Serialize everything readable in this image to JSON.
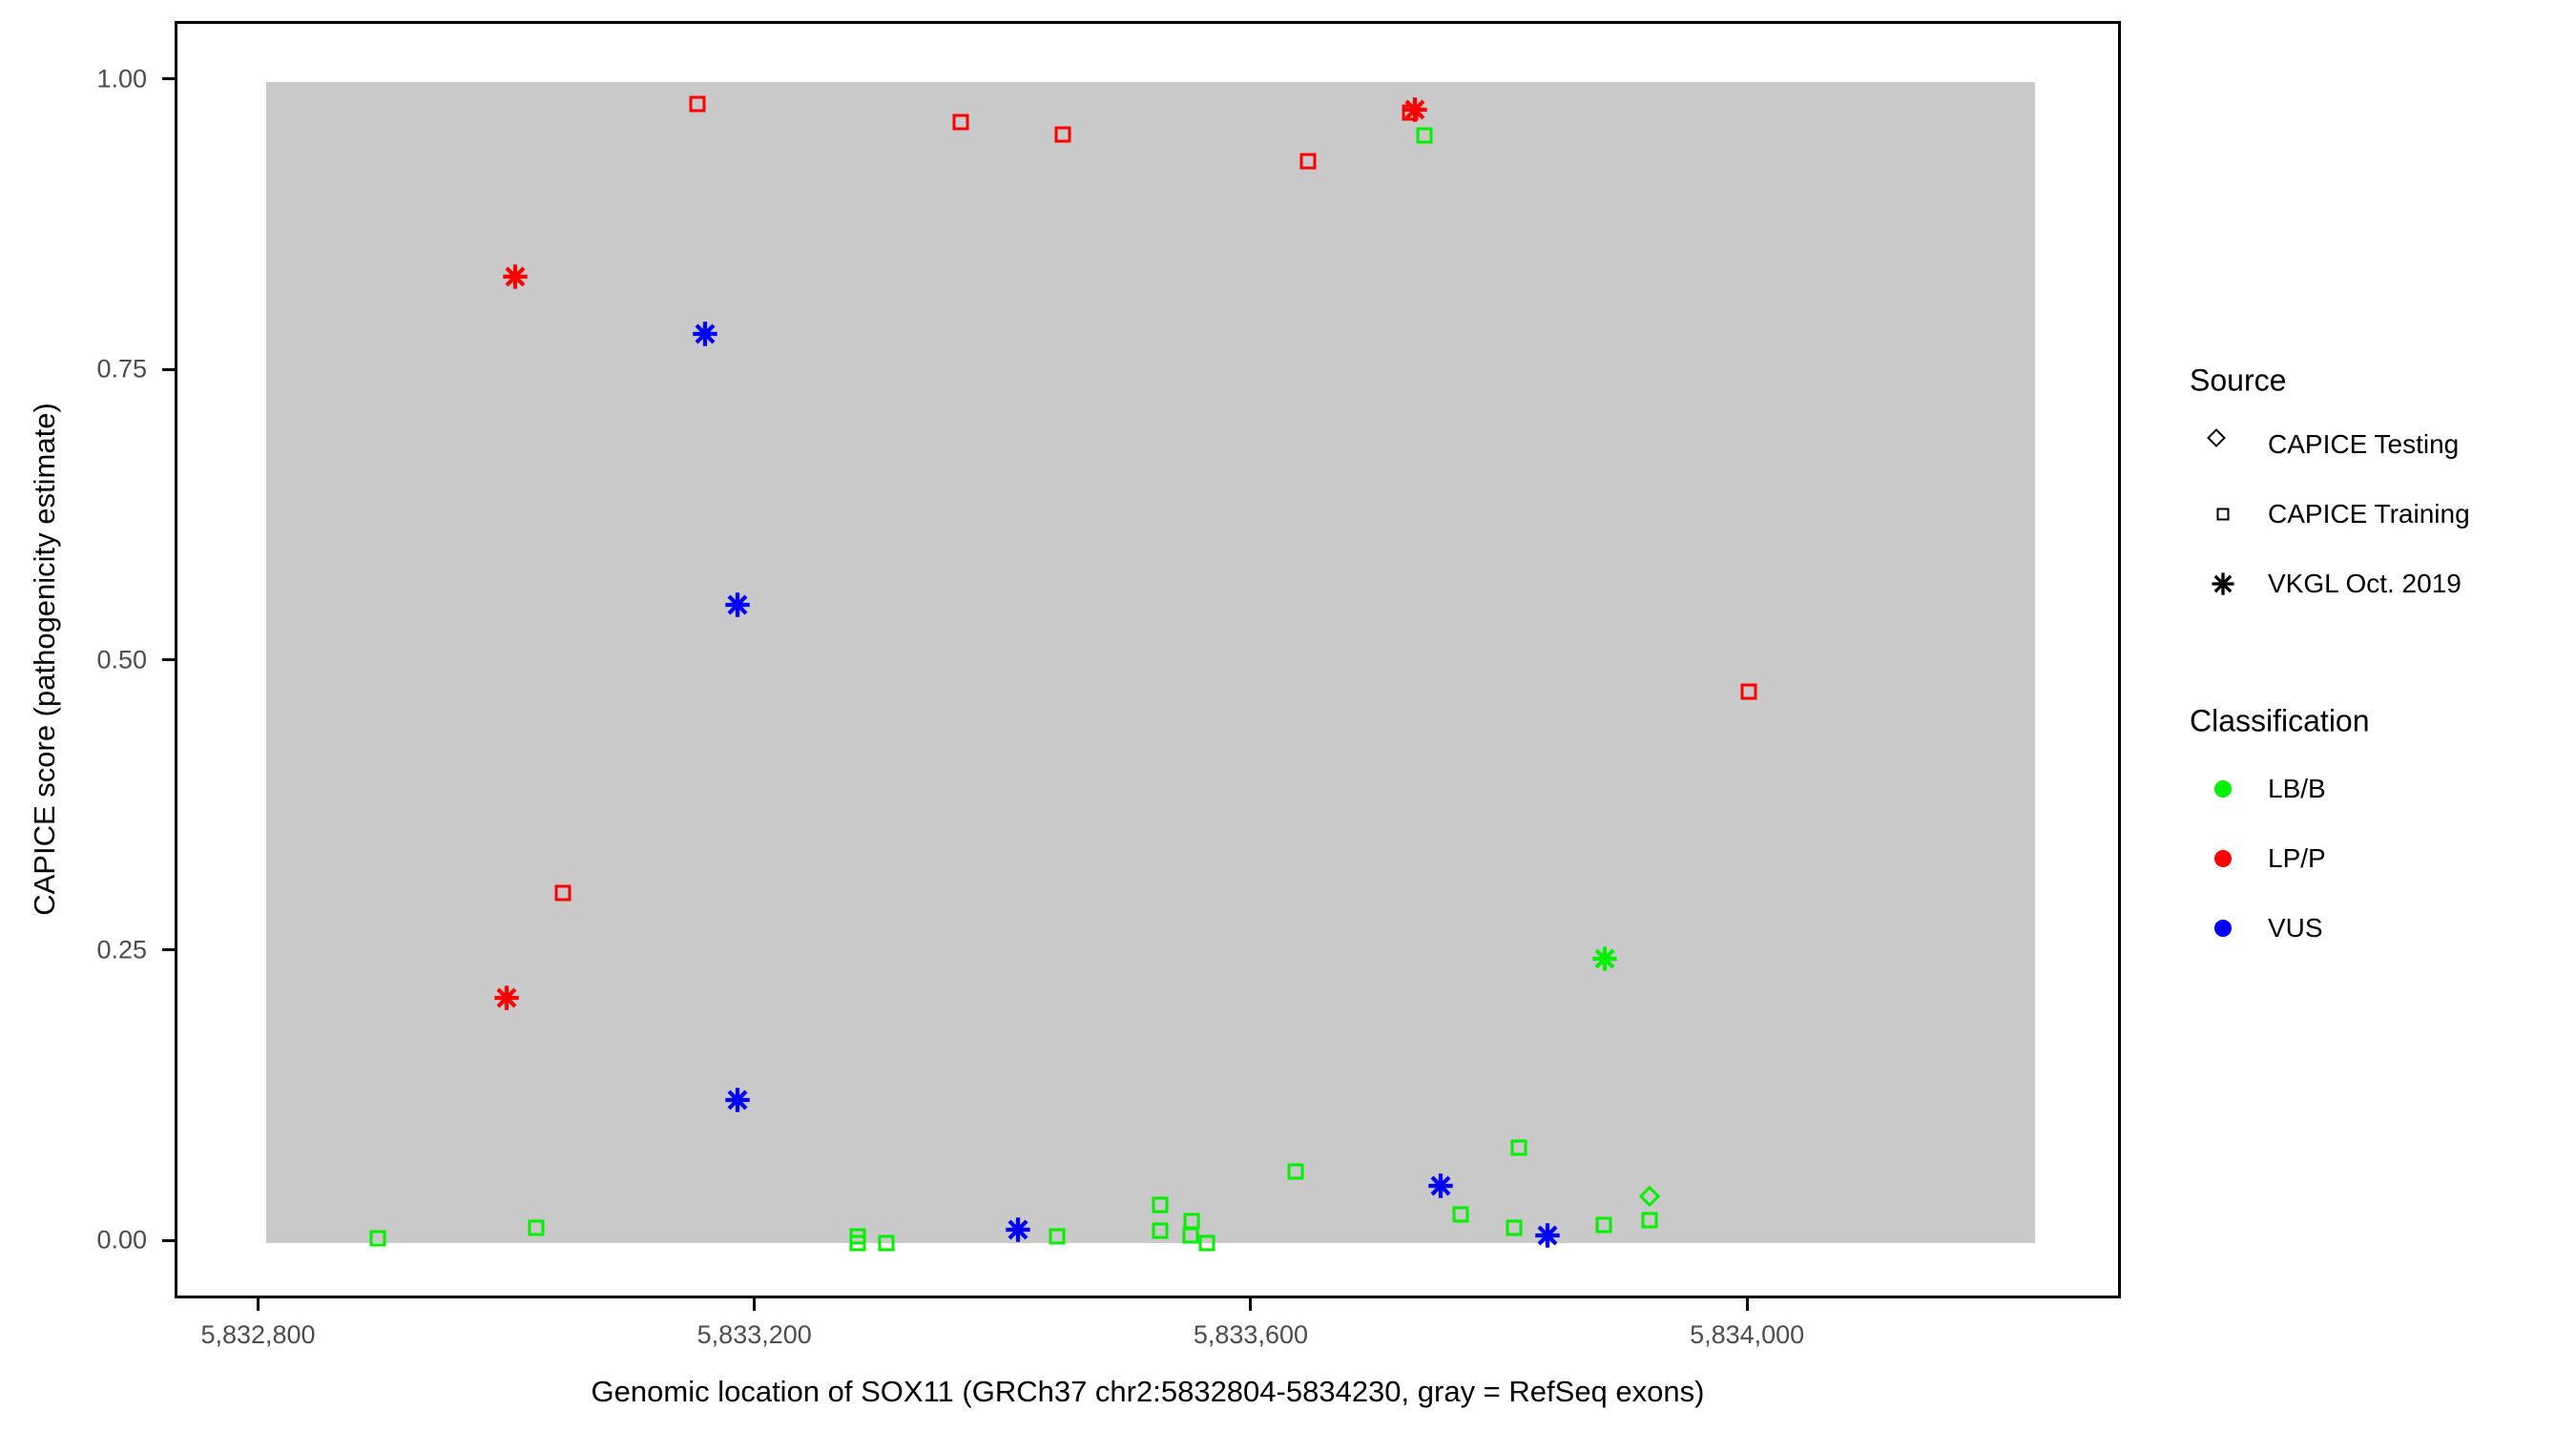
{
  "chart_data": {
    "type": "scatter",
    "xlabel": "Genomic location of SOX11 (GRCh37 chr2:5832804-5834230, gray = RefSeq exons)",
    "ylabel": "CAPICE score (pathogenicity estimate)",
    "x_domain": [
      5832732.7,
      5834301.3
    ],
    "y_domain": [
      -0.05,
      1.05
    ],
    "grid": "off",
    "x_ticks": [
      {
        "value": 5832800,
        "label": "5,832,800"
      },
      {
        "value": 5833200,
        "label": "5,833,200"
      },
      {
        "value": 5833600,
        "label": "5,833,600"
      },
      {
        "value": 5834000,
        "label": "5,834,000"
      }
    ],
    "y_ticks": [
      {
        "value": 0.0,
        "label": "0.00"
      },
      {
        "value": 0.25,
        "label": "0.25"
      },
      {
        "value": 0.5,
        "label": "0.50"
      },
      {
        "value": 0.75,
        "label": "0.75"
      },
      {
        "value": 1.0,
        "label": "1.00"
      }
    ],
    "exon_region": {
      "xmin": 5832804,
      "xmax": 5834230,
      "ymin": 0,
      "ymax": 1,
      "color": "#c9c9c9"
    },
    "series": [
      {
        "name": "LP/P - CAPICE Training",
        "classification": "LP/P",
        "source": "CAPICE Training",
        "shape": "square",
        "color": "#ff0000",
        "points": [
          [
            5833152,
            0.981
          ],
          [
            5833364,
            0.965
          ],
          [
            5833446,
            0.955
          ],
          [
            5833644,
            0.932
          ],
          [
            5833726,
            0.974
          ],
          [
            5833999,
            0.475
          ],
          [
            5833043,
            0.302
          ]
        ]
      },
      {
        "name": "LP/P - VKGL Oct. 2019",
        "classification": "LP/P",
        "source": "VKGL Oct. 2019",
        "shape": "asterisk",
        "color": "#ff0000",
        "points": [
          [
            5833730,
            0.976
          ],
          [
            5833005,
            0.832
          ],
          [
            5832998,
            0.211
          ]
        ]
      },
      {
        "name": "VUS - VKGL Oct. 2019",
        "classification": "VUS",
        "source": "VKGL Oct. 2019",
        "shape": "asterisk",
        "color": "#0000ff",
        "points": [
          [
            5833158,
            0.783
          ],
          [
            5833184,
            0.55
          ],
          [
            5833184,
            0.123
          ],
          [
            5833410,
            0.012
          ],
          [
            5833751,
            0.049
          ],
          [
            5833837,
            0.007
          ]
        ]
      },
      {
        "name": "LB/B - CAPICE Training",
        "classification": "LB/B",
        "source": "CAPICE Training",
        "shape": "square",
        "color": "#00f000",
        "points": [
          [
            5833738,
            0.954
          ],
          [
            5832894,
            0.004
          ],
          [
            5833022,
            0.013
          ],
          [
            5833281,
            0.006
          ],
          [
            5833281,
            0.0
          ],
          [
            5833304,
            0.0
          ],
          [
            5833442,
            0.006
          ],
          [
            5833525,
            0.033
          ],
          [
            5833525,
            0.011
          ],
          [
            5833550,
            0.019
          ],
          [
            5833549,
            0.007
          ],
          [
            5833562,
            0.0
          ],
          [
            5833634,
            0.062
          ],
          [
            5833767,
            0.025
          ],
          [
            5833814,
            0.082
          ],
          [
            5833810,
            0.013
          ],
          [
            5833882,
            0.016
          ],
          [
            5833919,
            0.02
          ]
        ]
      },
      {
        "name": "LB/B - CAPICE Testing",
        "classification": "LB/B",
        "source": "CAPICE Testing",
        "shape": "diamond",
        "color": "#00f000",
        "points": [
          [
            5833919,
            0.04
          ]
        ]
      },
      {
        "name": "LB/B - VKGL Oct. 2019",
        "classification": "LB/B",
        "source": "VKGL Oct. 2019",
        "shape": "asterisk",
        "color": "#00f000",
        "points": [
          [
            5833883,
            0.245
          ]
        ]
      }
    ]
  },
  "legend": {
    "source": {
      "title": "Source",
      "items": [
        {
          "label": "CAPICE Testing",
          "shape": "diamond"
        },
        {
          "label": "CAPICE Training",
          "shape": "square"
        },
        {
          "label": "VKGL Oct. 2019",
          "shape": "asterisk"
        }
      ]
    },
    "classification": {
      "title": "Classification",
      "items": [
        {
          "label": "LB/B",
          "color": "#00f000"
        },
        {
          "label": "LP/P",
          "color": "#ff0000"
        },
        {
          "label": "VUS",
          "color": "#0000ff"
        }
      ]
    }
  }
}
